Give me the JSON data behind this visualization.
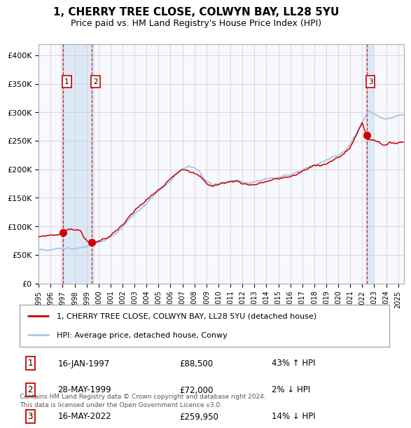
{
  "title": "1, CHERRY TREE CLOSE, COLWYN BAY, LL28 5YU",
  "subtitle": "Price paid vs. HM Land Registry's House Price Index (HPI)",
  "ylim": [
    0,
    420000
  ],
  "xlim_start": 1995.0,
  "xlim_end": 2025.5,
  "hpi_color": "#a8c8e8",
  "price_color": "#cc0000",
  "marker_color": "#cc0000",
  "vline_color": "#cc0000",
  "shade_color": "#dce8f5",
  "grid_color": "#cccccc",
  "background_color": "#f8f8ff",
  "legend_label_price": "1, CHERRY TREE CLOSE, COLWYN BAY, LL28 5YU (detached house)",
  "legend_label_hpi": "HPI: Average price, detached house, Conwy",
  "sale1_date": 1997.04,
  "sale1_price": 88500,
  "sale1_label": "1",
  "sale2_date": 1999.41,
  "sale2_price": 72000,
  "sale2_label": "2",
  "sale3_date": 2022.37,
  "sale3_price": 259950,
  "sale3_label": "3",
  "table_rows": [
    [
      "1",
      "16-JAN-1997",
      "£88,500",
      "43% ↑ HPI"
    ],
    [
      "2",
      "28-MAY-1999",
      "£72,000",
      "2% ↓ HPI"
    ],
    [
      "3",
      "16-MAY-2022",
      "£259,950",
      "14% ↓ HPI"
    ]
  ],
  "footer_text": "Contains HM Land Registry data © Crown copyright and database right 2024.\nThis data is licensed under the Open Government Licence v3.0.",
  "ytick_labels": [
    "£0",
    "£50K",
    "£100K",
    "£150K",
    "£200K",
    "£250K",
    "£300K",
    "£350K",
    "£400K"
  ],
  "ytick_values": [
    0,
    50000,
    100000,
    150000,
    200000,
    250000,
    300000,
    350000,
    400000
  ]
}
